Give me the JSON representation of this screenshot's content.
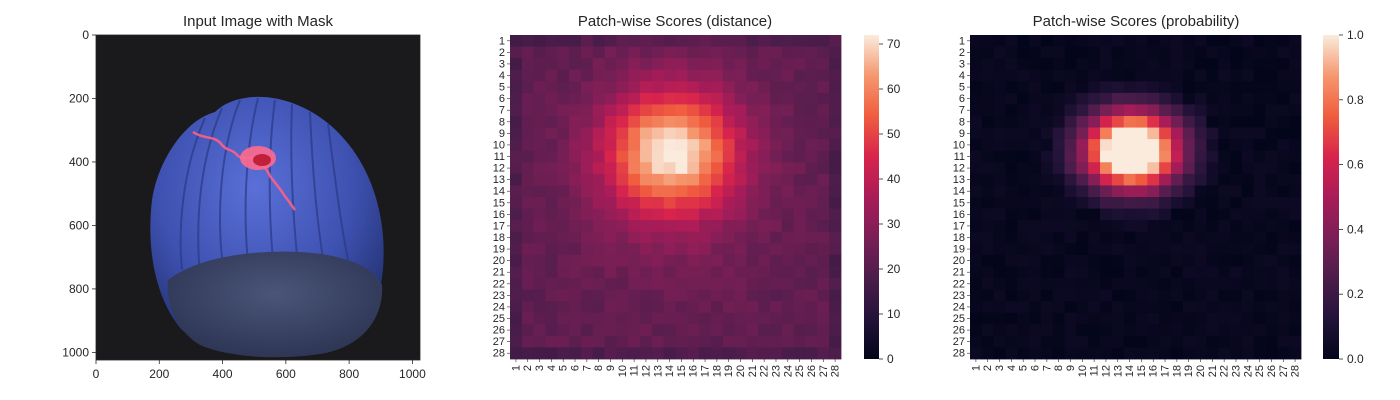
{
  "chart_data": [
    {
      "type": "image",
      "title": "Input Image with Mask",
      "x_ticks": [
        0,
        200,
        400,
        600,
        800,
        1000
      ],
      "y_ticks": [
        0,
        200,
        400,
        600,
        800,
        1000
      ],
      "xlim": [
        0,
        1024
      ],
      "ylim": [
        1024,
        0
      ],
      "colors": {
        "background": "#1a1a1c",
        "nut": "#4054b2",
        "nut_dark": "#2b3a7e",
        "base": "#3b4566",
        "mask": "#ff5f86"
      }
    },
    {
      "type": "heatmap",
      "title": "Patch-wise Scores (distance)",
      "rows": [
        "1",
        "2",
        "3",
        "4",
        "5",
        "6",
        "7",
        "8",
        "9",
        "10",
        "11",
        "12",
        "13",
        "14",
        "15",
        "16",
        "17",
        "18",
        "19",
        "20",
        "21",
        "22",
        "23",
        "24",
        "25",
        "26",
        "27",
        "28"
      ],
      "cols": [
        "1",
        "2",
        "3",
        "4",
        "5",
        "6",
        "7",
        "8",
        "9",
        "10",
        "11",
        "12",
        "13",
        "14",
        "15",
        "16",
        "17",
        "18",
        "19",
        "20",
        "21",
        "22",
        "23",
        "24",
        "25",
        "26",
        "27",
        "28"
      ],
      "value_range": [
        0,
        72
      ],
      "colorbar_ticks": [
        0,
        10,
        20,
        30,
        40,
        50,
        60,
        70
      ],
      "colormap": "rocket",
      "anomaly_center": [
        10.5,
        14.2
      ],
      "peak_value": 72,
      "background_value": 24
    },
    {
      "type": "heatmap",
      "title": "Patch-wise Scores (probability)",
      "rows": [
        "1",
        "2",
        "3",
        "4",
        "5",
        "6",
        "7",
        "8",
        "9",
        "10",
        "11",
        "12",
        "13",
        "14",
        "15",
        "16",
        "17",
        "18",
        "19",
        "20",
        "21",
        "22",
        "23",
        "24",
        "25",
        "26",
        "27",
        "28"
      ],
      "cols": [
        "1",
        "2",
        "3",
        "4",
        "5",
        "6",
        "7",
        "8",
        "9",
        "10",
        "11",
        "12",
        "13",
        "14",
        "15",
        "16",
        "17",
        "18",
        "19",
        "20",
        "21",
        "22",
        "23",
        "24",
        "25",
        "26",
        "27",
        "28"
      ],
      "value_range": [
        0,
        1.0
      ],
      "colorbar_ticks": [
        "0.0",
        "0.2",
        "0.4",
        "0.6",
        "0.8",
        "1.0"
      ],
      "colormap": "rocket",
      "anomaly_center": [
        10.5,
        14.2
      ],
      "peak_value": 1.0,
      "background_value": 0.0
    }
  ]
}
